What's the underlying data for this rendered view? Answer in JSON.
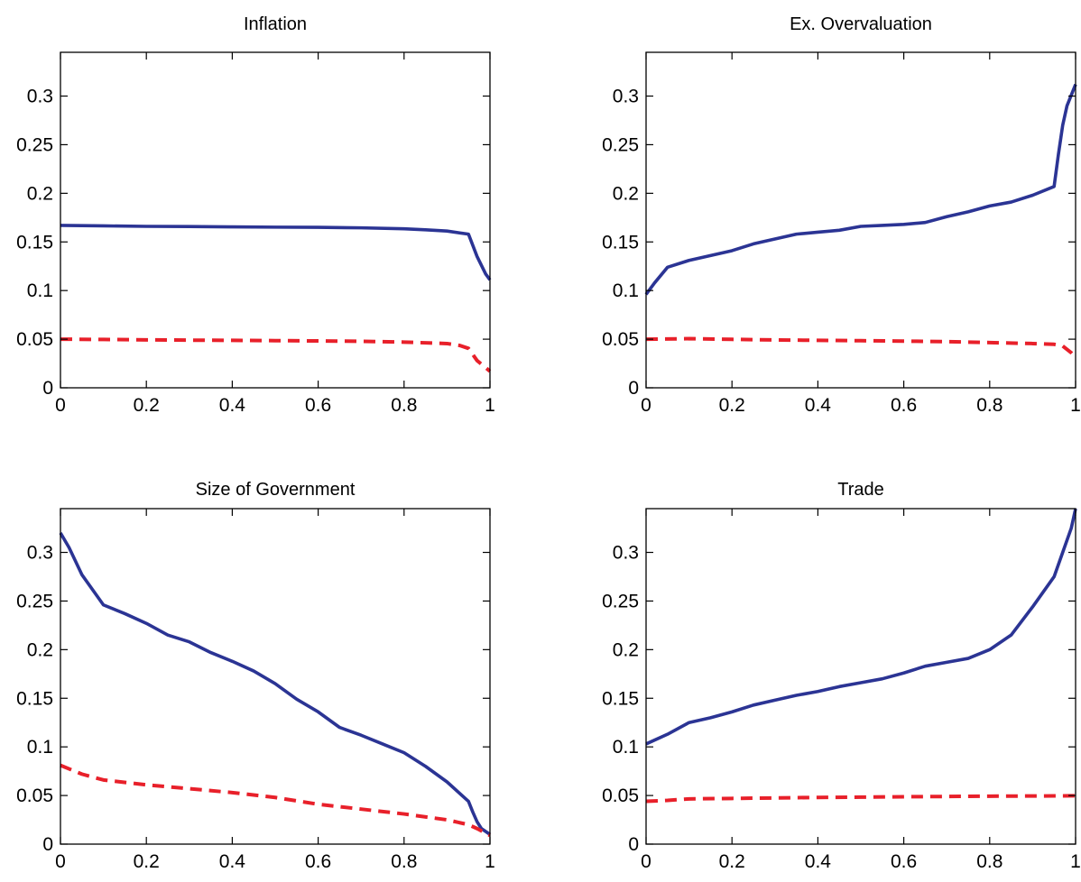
{
  "chart_data": [
    {
      "type": "line",
      "title": "Inflation",
      "xlim": [
        0,
        1
      ],
      "ylim": [
        0,
        0.345
      ],
      "xticks": [
        "0",
        "0.2",
        "0.4",
        "0.6",
        "0.8",
        "1"
      ],
      "yticks": [
        "0",
        "0.05",
        "0.1",
        "0.15",
        "0.2",
        "0.25",
        "0.3"
      ],
      "grid": false,
      "series": [
        {
          "style": "solid",
          "color": "#2b3494",
          "x": [
            0,
            0.05,
            0.1,
            0.2,
            0.3,
            0.4,
            0.5,
            0.6,
            0.7,
            0.8,
            0.85,
            0.9,
            0.95,
            0.97,
            0.99,
            1
          ],
          "y": [
            0.167,
            0.1668,
            0.1665,
            0.166,
            0.1658,
            0.1655,
            0.1652,
            0.165,
            0.1645,
            0.1635,
            0.1625,
            0.1612,
            0.158,
            0.135,
            0.117,
            0.111
          ]
        },
        {
          "style": "dashed",
          "color": "#e8202a",
          "x": [
            0,
            0.1,
            0.2,
            0.3,
            0.4,
            0.5,
            0.6,
            0.7,
            0.8,
            0.9,
            0.93,
            0.95,
            0.97,
            1
          ],
          "y": [
            0.05,
            0.0497,
            0.0493,
            0.049,
            0.0488,
            0.0485,
            0.0482,
            0.0478,
            0.047,
            0.0455,
            0.0435,
            0.0405,
            0.028,
            0.017
          ]
        }
      ]
    },
    {
      "type": "line",
      "title": "Ex. Overvaluation",
      "xlim": [
        0,
        1
      ],
      "ylim": [
        0,
        0.345
      ],
      "xticks": [
        "0",
        "0.2",
        "0.4",
        "0.6",
        "0.8",
        "1"
      ],
      "yticks": [
        "0",
        "0.05",
        "0.1",
        "0.15",
        "0.2",
        "0.25",
        "0.3"
      ],
      "grid": false,
      "series": [
        {
          "style": "solid",
          "color": "#2b3494",
          "x": [
            0,
            0.02,
            0.05,
            0.1,
            0.15,
            0.2,
            0.25,
            0.3,
            0.35,
            0.4,
            0.45,
            0.5,
            0.55,
            0.6,
            0.65,
            0.7,
            0.75,
            0.8,
            0.85,
            0.9,
            0.95,
            0.96,
            0.97,
            0.98,
            1
          ],
          "y": [
            0.096,
            0.108,
            0.124,
            0.131,
            0.136,
            0.141,
            0.148,
            0.153,
            0.158,
            0.16,
            0.162,
            0.166,
            0.167,
            0.168,
            0.17,
            0.176,
            0.181,
            0.187,
            0.191,
            0.198,
            0.207,
            0.24,
            0.27,
            0.29,
            0.312
          ]
        },
        {
          "style": "dashed",
          "color": "#e8202a",
          "x": [
            0,
            0.1,
            0.2,
            0.3,
            0.4,
            0.5,
            0.6,
            0.7,
            0.8,
            0.9,
            0.95,
            0.97,
            0.99,
            1
          ],
          "y": [
            0.05,
            0.0505,
            0.0498,
            0.0492,
            0.0488,
            0.0484,
            0.048,
            0.0475,
            0.0465,
            0.0455,
            0.0447,
            0.043,
            0.036,
            0.031
          ]
        }
      ]
    },
    {
      "type": "line",
      "title": "Size of Government",
      "xlim": [
        0,
        1
      ],
      "ylim": [
        0,
        0.345
      ],
      "xticks": [
        "0",
        "0.2",
        "0.4",
        "0.6",
        "0.8",
        "1"
      ],
      "yticks": [
        "0",
        "0.05",
        "0.1",
        "0.15",
        "0.2",
        "0.25",
        "0.3"
      ],
      "grid": false,
      "series": [
        {
          "style": "solid",
          "color": "#2b3494",
          "x": [
            0,
            0.02,
            0.05,
            0.1,
            0.15,
            0.2,
            0.25,
            0.3,
            0.35,
            0.4,
            0.45,
            0.5,
            0.55,
            0.6,
            0.65,
            0.7,
            0.75,
            0.8,
            0.85,
            0.9,
            0.95,
            0.96,
            0.97,
            0.98,
            1
          ],
          "y": [
            0.32,
            0.305,
            0.277,
            0.246,
            0.237,
            0.227,
            0.215,
            0.208,
            0.197,
            0.188,
            0.178,
            0.165,
            0.149,
            0.136,
            0.12,
            0.112,
            0.103,
            0.094,
            0.08,
            0.064,
            0.044,
            0.033,
            0.023,
            0.016,
            0.01
          ]
        },
        {
          "style": "dashed",
          "color": "#e8202a",
          "x": [
            0,
            0.05,
            0.1,
            0.2,
            0.3,
            0.4,
            0.5,
            0.6,
            0.7,
            0.8,
            0.9,
            0.95,
            0.97,
            1
          ],
          "y": [
            0.081,
            0.072,
            0.066,
            0.061,
            0.057,
            0.053,
            0.048,
            0.041,
            0.036,
            0.031,
            0.025,
            0.02,
            0.016,
            0.009
          ]
        }
      ]
    },
    {
      "type": "line",
      "title": "Trade",
      "xlim": [
        0,
        1
      ],
      "ylim": [
        0,
        0.345
      ],
      "xticks": [
        "0",
        "0.2",
        "0.4",
        "0.6",
        "0.8",
        "1"
      ],
      "yticks": [
        "0",
        "0.05",
        "0.1",
        "0.15",
        "0.2",
        "0.25",
        "0.3"
      ],
      "grid": false,
      "series": [
        {
          "style": "solid",
          "color": "#2b3494",
          "x": [
            0,
            0.05,
            0.1,
            0.15,
            0.2,
            0.25,
            0.3,
            0.35,
            0.4,
            0.45,
            0.5,
            0.55,
            0.6,
            0.65,
            0.7,
            0.75,
            0.8,
            0.85,
            0.9,
            0.95,
            0.97,
            0.99,
            1
          ],
          "y": [
            0.103,
            0.113,
            0.125,
            0.13,
            0.136,
            0.143,
            0.148,
            0.153,
            0.157,
            0.162,
            0.166,
            0.17,
            0.176,
            0.183,
            0.187,
            0.191,
            0.2,
            0.215,
            0.244,
            0.275,
            0.3,
            0.325,
            0.345
          ]
        },
        {
          "style": "dashed",
          "color": "#e8202a",
          "x": [
            0,
            0.05,
            0.1,
            0.2,
            0.3,
            0.4,
            0.5,
            0.6,
            0.7,
            0.8,
            0.9,
            1
          ],
          "y": [
            0.044,
            0.045,
            0.0465,
            0.047,
            0.0475,
            0.048,
            0.0483,
            0.0487,
            0.049,
            0.0493,
            0.0495,
            0.0497
          ]
        }
      ]
    }
  ]
}
